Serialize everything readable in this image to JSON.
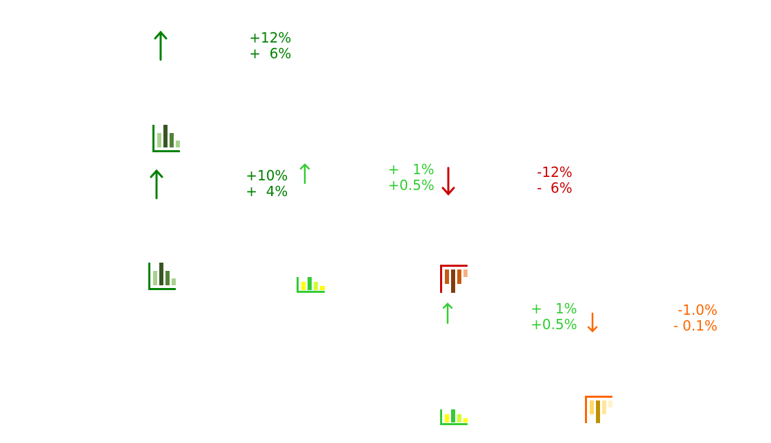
{
  "colors": {
    "dark_green": "#008000",
    "light_green": "#33cc33",
    "red": "#cc0000",
    "orange": "#ff6600"
  },
  "groups": [
    {
      "arrow": "arrow-up-icon",
      "lines": [
        "+12%",
        "+  6%"
      ],
      "chart_icon": "bar-chart-icon"
    },
    {
      "arrow": "arrow-up-icon",
      "lines": [
        "+10%",
        "+  4%"
      ],
      "chart_icon": "bar-chart-icon"
    },
    {
      "arrow": "arrow-up-icon",
      "lines": [
        "+   1%",
        "+0.5%"
      ],
      "chart_icon": "bar-chart-icon"
    },
    {
      "arrow": "arrow-down-icon",
      "lines": [
        "-12%",
        "-  6%"
      ],
      "chart_icon": "inverted-bar-chart-icon"
    },
    {
      "arrow": "arrow-up-icon",
      "lines": [
        "+   1%",
        "+0.5%"
      ],
      "chart_icon": "bar-chart-icon"
    },
    {
      "arrow": "arrow-down-icon",
      "lines": [
        "-1.0%",
        "- 0.1%"
      ],
      "chart_icon": "inverted-bar-chart-icon"
    }
  ]
}
